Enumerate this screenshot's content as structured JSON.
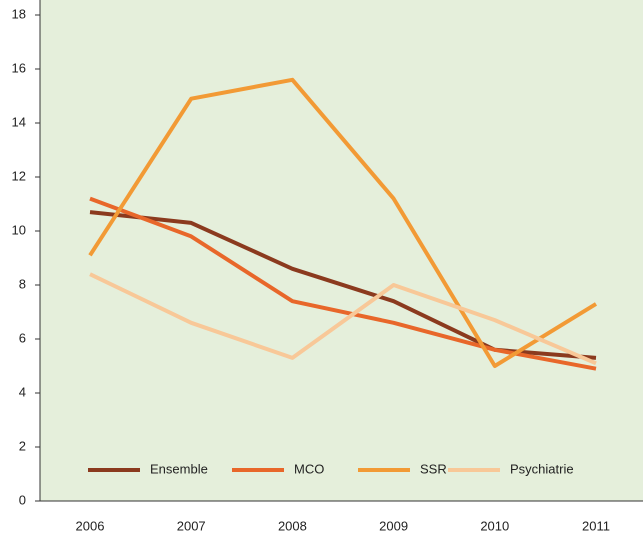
{
  "chart_data": {
    "type": "line",
    "categories": [
      "2006",
      "2007",
      "2008",
      "2009",
      "2010",
      "2011"
    ],
    "series": [
      {
        "name": "Ensemble",
        "color": "#8b3a1e",
        "values": [
          10.7,
          10.3,
          8.6,
          7.4,
          5.6,
          5.3
        ]
      },
      {
        "name": "MCO",
        "color": "#e8672a",
        "values": [
          11.2,
          9.8,
          7.4,
          6.6,
          5.6,
          4.9
        ]
      },
      {
        "name": "SSR",
        "color": "#f29a35",
        "values": [
          9.1,
          14.9,
          15.6,
          11.2,
          5.0,
          7.3
        ]
      },
      {
        "name": "Psychiatrie",
        "color": "#f8c898",
        "values": [
          8.4,
          6.6,
          5.3,
          8.0,
          6.7,
          5.1
        ]
      }
    ],
    "ylim": [
      0,
      18
    ],
    "yticks": [
      0,
      2,
      4,
      6,
      8,
      10,
      12,
      14,
      16,
      18
    ],
    "background": "#e5efdb",
    "legend": "bottom"
  }
}
